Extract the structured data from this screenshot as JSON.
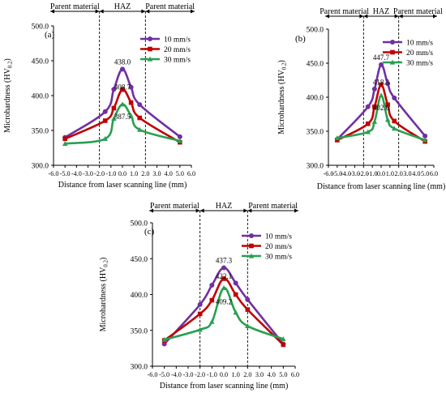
{
  "colors": {
    "series": [
      "#7030A0",
      "#C00000",
      "#28A050"
    ]
  },
  "chart_data": [
    {
      "type": "line",
      "panel_label": "(a)",
      "xlabel": "Distance from laser scanning line (mm)",
      "ylabel": "Microhardness (HV0.2)",
      "xlim": [
        -6.0,
        6.0
      ],
      "ylim": [
        300.0,
        500.0
      ],
      "x_ticks": [
        -6.0,
        -5.0,
        -4.0,
        -3.0,
        -2.0,
        -1.0,
        0.0,
        1.0,
        2.0,
        3.0,
        4.0,
        5.0,
        6.0
      ],
      "x_tick_labels": [
        "-6.0",
        "-5.0",
        "-4.0",
        "-3.0",
        "-2.0",
        "-1.0",
        "0.0",
        "1.0",
        "2.0",
        "3.0",
        "4.0",
        "5.0",
        "6.0"
      ],
      "y_ticks": [
        300.0,
        350.0,
        400.0,
        450.0,
        500.0
      ],
      "y_tick_labels": [
        "300.0",
        "350.0",
        "400.0",
        "450.0",
        "500.0"
      ],
      "boundaries": [
        -2.0,
        2.0
      ],
      "regions": [
        "Parent material",
        "HAZ",
        "Parent material"
      ],
      "series": [
        {
          "name": "10 mm/s",
          "x": [
            -5.0,
            -1.5,
            -0.75,
            0.0,
            0.75,
            1.5,
            5.0
          ],
          "values": [
            340,
            377,
            409,
            438.0,
            412,
            387,
            341
          ],
          "peak_label": "438.0"
        },
        {
          "name": "20 mm/s",
          "x": [
            -5.0,
            -1.5,
            -0.75,
            0.0,
            0.75,
            1.5,
            5.0
          ],
          "values": [
            338,
            364,
            382,
            408.7,
            390,
            368,
            333
          ],
          "peak_label": "408.7"
        },
        {
          "name": "30 mm/s",
          "x": [
            -5.0,
            -1.5,
            -0.75,
            0.0,
            0.75,
            1.5,
            5.0
          ],
          "values": [
            331,
            338,
            367,
            387.5,
            371,
            351,
            335
          ],
          "peak_label": "387.5"
        }
      ]
    },
    {
      "type": "line",
      "panel_label": "(b)",
      "xlabel": "Distance from laser scanning line (mm)",
      "ylabel": "Microhardness (HV0.2)",
      "xlim": [
        -6.0,
        6.0
      ],
      "ylim": [
        300.0,
        500.0
      ],
      "x_ticks": [
        -6.0,
        -5.0,
        -4.0,
        -3.0,
        -2.0,
        -1.0,
        0.0,
        1.0,
        2.0,
        3.0,
        4.0,
        5.0,
        6.0
      ],
      "x_tick_labels": [
        "-6.0",
        "-5.0",
        "-4.0",
        "-3.0",
        "-2.0",
        "-1.0",
        "0.0",
        "1.0",
        "2.0",
        "3.0",
        "4.0",
        "5.0",
        "6.0"
      ],
      "y_ticks": [
        300.0,
        350.0,
        400.0,
        450.0,
        500.0
      ],
      "y_tick_labels": [
        "300.0",
        "350.0",
        "400.0",
        "450.0",
        "500.0"
      ],
      "boundaries": [
        -2.0,
        2.0
      ],
      "regions": [
        "Parent material",
        "HAZ",
        "Parent material"
      ],
      "series": [
        {
          "name": "10 mm/s",
          "x": [
            -5.0,
            -1.5,
            -0.75,
            0.0,
            0.75,
            1.5,
            5.0
          ],
          "values": [
            338,
            386,
            412,
            447.7,
            420,
            399,
            343
          ],
          "peak_label": "447.7"
        },
        {
          "name": "20 mm/s",
          "x": [
            -5.0,
            -1.5,
            -0.75,
            0.0,
            0.75,
            1.5,
            5.0
          ],
          "values": [
            337,
            361,
            386,
            418.3,
            389,
            365,
            335
          ],
          "peak_label": "418.3"
        },
        {
          "name": "30 mm/s",
          "x": [
            -5.0,
            -1.5,
            -0.75,
            0.0,
            0.75,
            1.5,
            5.0
          ],
          "values": [
            340,
            349,
            364,
            402.6,
            367,
            354,
            337
          ],
          "peak_label": "402.6"
        }
      ]
    },
    {
      "type": "line",
      "panel_label": "(c)",
      "xlabel": "Distance from laser scanning line (mm)",
      "ylabel": "Microhardness (HV0.2)",
      "xlim": [
        -6.0,
        6.0
      ],
      "ylim": [
        300.0,
        500.0
      ],
      "x_ticks": [
        -6.0,
        -5.0,
        -4.0,
        -3.0,
        -2.0,
        -1.0,
        0.0,
        1.0,
        2.0,
        3.0,
        4.0,
        5.0,
        6.0
      ],
      "x_tick_labels": [
        "-6.0",
        "-5.0",
        "-4.0",
        "-3.0",
        "-2.0",
        "-1.0",
        "0.0",
        "1.0",
        "2.0",
        "3.0",
        "4.0",
        "5.0",
        "6.0"
      ],
      "y_ticks": [
        300.0,
        350.0,
        400.0,
        450.0,
        500.0
      ],
      "y_tick_labels": [
        "300.0",
        "350.0",
        "400.0",
        "450.0",
        "500.0"
      ],
      "boundaries": [
        -2.0,
        2.0
      ],
      "regions": [
        "Parent material",
        "HAZ",
        "Parent material"
      ],
      "series": [
        {
          "name": "10 mm/s",
          "x": [
            -5.0,
            -2.0,
            -1.0,
            0.0,
            1.0,
            2.0,
            5.0
          ],
          "values": [
            331,
            386,
            413,
            437.3,
            416,
            393,
            331
          ],
          "peak_label": "437.3"
        },
        {
          "name": "20 mm/s",
          "x": [
            -5.0,
            -2.0,
            -1.0,
            0.0,
            1.0,
            2.0,
            5.0
          ],
          "values": [
            336,
            373,
            392,
            422.1,
            400,
            379,
            330
          ],
          "peak_label": "422.1"
        },
        {
          "name": "30 mm/s",
          "x": [
            -5.0,
            -2.0,
            -1.0,
            0.0,
            1.0,
            2.0,
            5.0
          ],
          "values": [
            337,
            351,
            362,
            409.2,
            375,
            356,
            338
          ],
          "peak_label": "409.2"
        }
      ]
    }
  ]
}
